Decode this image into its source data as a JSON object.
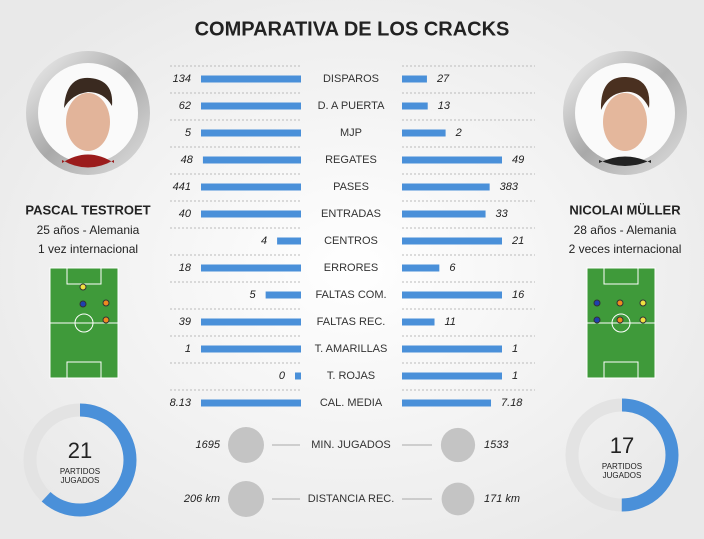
{
  "chart_data": {
    "type": "bar",
    "title": "COMPARATIVA DE LOS CRACKS",
    "categories": [
      "DISPAROS",
      "D. A PUERTA",
      "MJP",
      "REGATES",
      "PASES",
      "ENTRADAS",
      "CENTROS",
      "ERRORES",
      "FALTAS COM.",
      "FALTAS REC.",
      "T. AMARILLAS",
      "T. ROJAS",
      "CAL. MEDIA"
    ],
    "series": [
      {
        "name": "PASCAL TESTROET",
        "color": "#4a90d9",
        "values": [
          134,
          62,
          5,
          48,
          441,
          40,
          4,
          18,
          5,
          39,
          1,
          0,
          8.13
        ]
      },
      {
        "name": "NICOLAI MÜLLER",
        "color": "#4a90d9",
        "values": [
          27,
          13,
          2,
          49,
          383,
          33,
          21,
          6,
          16,
          11,
          1,
          1,
          7.18
        ]
      }
    ]
  },
  "players": [
    {
      "info": [
        "25 años - Alemania",
        "1 vez internacional"
      ],
      "games": 21,
      "games_label": [
        "PARTIDOS",
        "JUGADOS"
      ]
    },
    {
      "info": [
        "28 años - Alemania",
        "2 veces internacional"
      ],
      "games": 17,
      "games_label": [
        "PARTIDOS",
        "JUGADOS"
      ]
    }
  ],
  "games_lim": [
    0,
    34
  ],
  "totals": [
    {
      "label": "MIN. JUGADOS",
      "values": [
        1695,
        1533
      ]
    },
    {
      "label": "DISTANCIA REC.",
      "values": [
        206,
        171
      ],
      "value_labels": [
        "206 km",
        "171 km"
      ]
    }
  ]
}
